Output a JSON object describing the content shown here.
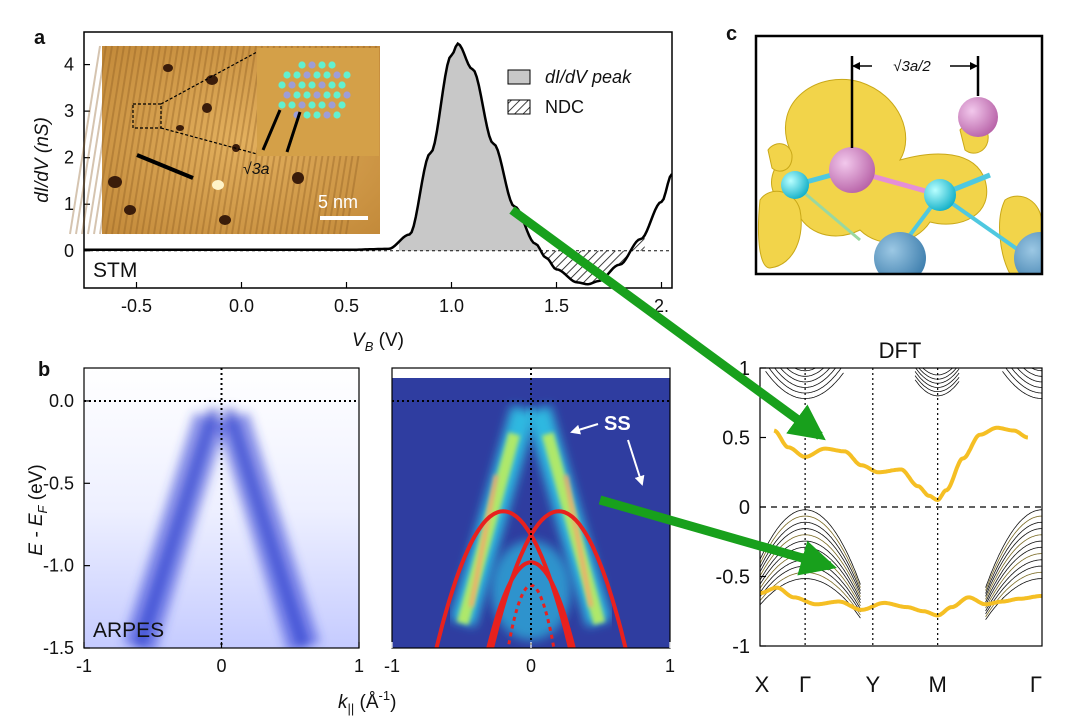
{
  "panel_labels": {
    "a": "a",
    "b": "b",
    "c": "c"
  },
  "colors": {
    "gray_fill": "#c8c8c8",
    "band_yellow": "#f5bf24",
    "arrow_green": "#18a01c",
    "ss_red": "#e8211e",
    "arpes_blue": "#2f3da0"
  },
  "chart_data": [
    {
      "id": "stm",
      "type": "line",
      "title": "",
      "xlabel": "V",
      "xlabel_sub": "B",
      "xlabel_unit": " (V)",
      "ylabel": "dI/dV (nS)",
      "xlim": [
        -0.75,
        2.05
      ],
      "ylim": [
        -0.8,
        4.7
      ],
      "xticks": [
        -0.5,
        0.0,
        0.5,
        1.0,
        1.5,
        2.0
      ],
      "xtick_labels": [
        "-0.5",
        "0.0",
        "0.5",
        "1.0",
        "1.5",
        "2."
      ],
      "yticks": [
        0,
        1,
        2,
        3,
        4
      ],
      "ytick_labels": [
        "0",
        "1",
        "2",
        "3",
        "4"
      ],
      "series": [
        {
          "name": "dI/dV",
          "x": [
            -0.75,
            0.0,
            0.5,
            0.7,
            0.8,
            0.9,
            1.0,
            1.03,
            1.1,
            1.2,
            1.3,
            1.4,
            1.45,
            1.5,
            1.6,
            1.65,
            1.7,
            1.8,
            1.9,
            2.0,
            2.05
          ],
          "y": [
            0.02,
            0.02,
            0.02,
            0.04,
            0.35,
            2.1,
            4.2,
            4.45,
            3.9,
            2.3,
            0.95,
            0.15,
            -0.15,
            -0.4,
            -0.68,
            -0.72,
            -0.65,
            -0.3,
            0.25,
            1.05,
            1.65
          ]
        }
      ],
      "shaded_regions": [
        {
          "label": "dI/dV peak",
          "x": [
            0.75,
            1.42
          ],
          "style": "gray"
        },
        {
          "label": "NDC",
          "x": [
            1.42,
            1.92
          ],
          "style": "hatched"
        }
      ],
      "legend": [
        "dI/dV peak",
        "NDC"
      ],
      "annotation": "STM",
      "inset": {
        "scale_label": "5 nm",
        "lattice_label": "√3a"
      }
    },
    {
      "id": "arpes",
      "type": "heatmap",
      "ylabel": "E - E",
      "ylabel_sub": "F",
      "ylabel_unit": " (eV)",
      "xlabel": "k",
      "xlabel_sub": "||",
      "xlabel_unit": " (Å",
      "xlabel_sup": "-1",
      "xlabel_tail": ")",
      "xlim": [
        -1,
        1
      ],
      "ylim": [
        -1.5,
        0.2
      ],
      "xticks": [
        -1,
        0,
        1
      ],
      "xtick_labels": [
        "-1",
        "0",
        "1"
      ],
      "yticks": [
        0.0,
        -0.5,
        -1.0,
        -1.5
      ],
      "ytick_labels": [
        "0.0",
        "-0.5",
        "-1.0",
        "-1.5"
      ],
      "annotation": "ARPES",
      "bands": [
        {
          "name": "Dirac cone",
          "apex_k": 0.0,
          "apex_E": 0.0,
          "slope": 2.5
        }
      ]
    },
    {
      "id": "arpes_second_derivative",
      "type": "heatmap",
      "xlim": [
        -1,
        1
      ],
      "ylim": [
        -1.5,
        0.2
      ],
      "xticks": [
        -1,
        0,
        1
      ],
      "xtick_labels": [
        "-1",
        "0",
        "1"
      ],
      "annotation": "SS",
      "surface_states": [
        {
          "name": "outer parabola",
          "apex_k": 0.2,
          "apex_E": -0.67,
          "curvature": 3.6,
          "mirrored": true
        },
        {
          "name": "inner parabola",
          "apex_k": 0.0,
          "apex_E": -0.98,
          "curvature": 5.5,
          "mirrored": false
        },
        {
          "name": "inner dotted",
          "apex_k": 0.0,
          "apex_E": -1.12,
          "curvature": 14.0,
          "mirrored": false,
          "dotted": true
        }
      ]
    },
    {
      "id": "dft",
      "type": "line",
      "title": "DFT",
      "ylim": [
        -1,
        1
      ],
      "yticks": [
        1,
        0.5,
        0,
        -0.5,
        -1
      ],
      "ytick_labels": [
        "1",
        "0.5",
        "0",
        "-0.5",
        "-1"
      ],
      "kpoints": [
        "X",
        "Γ",
        "Y",
        "M",
        "Γ"
      ],
      "kpoint_positions": [
        0,
        0.16,
        0.4,
        0.63,
        1.0
      ],
      "series": [
        {
          "name": "upper surface band",
          "x": [
            0.05,
            0.1,
            0.16,
            0.23,
            0.3,
            0.36,
            0.42,
            0.5,
            0.56,
            0.6,
            0.63,
            0.66,
            0.72,
            0.78,
            0.84,
            0.9,
            0.95
          ],
          "y": [
            0.55,
            0.43,
            0.36,
            0.42,
            0.4,
            0.3,
            0.25,
            0.27,
            0.15,
            0.08,
            0.05,
            0.12,
            0.35,
            0.52,
            0.57,
            0.55,
            0.5
          ]
        },
        {
          "name": "lower surface band",
          "x": [
            0.0,
            0.06,
            0.12,
            0.2,
            0.28,
            0.36,
            0.44,
            0.52,
            0.58,
            0.63,
            0.68,
            0.74,
            0.8,
            0.86,
            0.92,
            1.0
          ],
          "y": [
            -0.62,
            -0.58,
            -0.65,
            -0.7,
            -0.68,
            -0.74,
            -0.69,
            -0.72,
            -0.75,
            -0.78,
            -0.72,
            -0.65,
            -0.7,
            -0.68,
            -0.66,
            -0.64
          ]
        }
      ]
    },
    {
      "id": "structure",
      "type": "other",
      "annotation": "√3a/2"
    }
  ]
}
